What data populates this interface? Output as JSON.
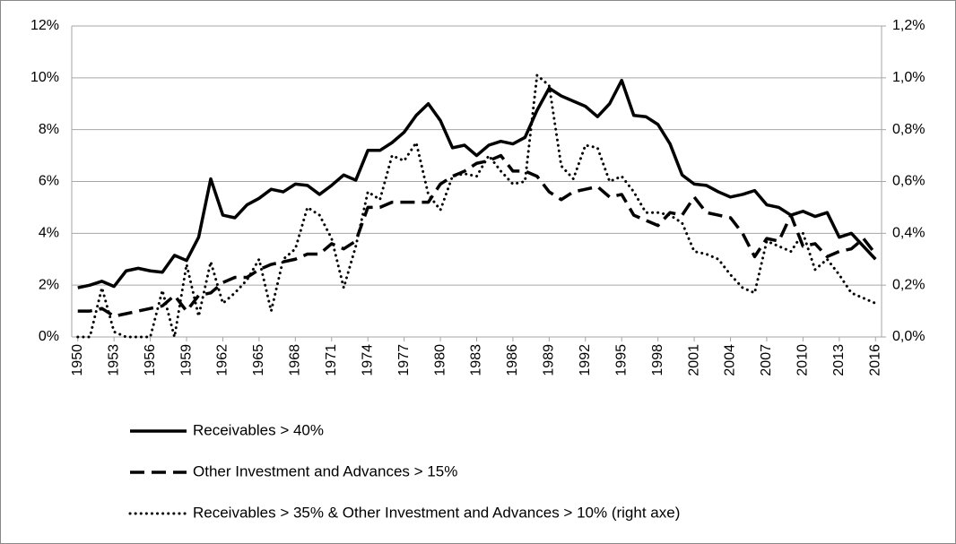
{
  "chart_data": {
    "type": "line",
    "x": [
      1950,
      1951,
      1952,
      1953,
      1954,
      1955,
      1956,
      1957,
      1958,
      1959,
      1960,
      1961,
      1962,
      1963,
      1964,
      1965,
      1966,
      1967,
      1968,
      1969,
      1970,
      1971,
      1972,
      1973,
      1974,
      1975,
      1976,
      1977,
      1978,
      1979,
      1980,
      1981,
      1982,
      1983,
      1984,
      1985,
      1986,
      1987,
      1988,
      1989,
      1990,
      1991,
      1992,
      1993,
      1994,
      1995,
      1996,
      1997,
      1998,
      1999,
      2000,
      2001,
      2002,
      2003,
      2004,
      2005,
      2006,
      2007,
      2008,
      2009,
      2010,
      2011,
      2012,
      2013,
      2014,
      2015,
      2016
    ],
    "xlim": [
      1949.5,
      2016.5
    ],
    "xticks": [
      1950,
      1953,
      1956,
      1959,
      1962,
      1965,
      1968,
      1971,
      1974,
      1977,
      1980,
      1983,
      1986,
      1989,
      1992,
      1995,
      1998,
      2001,
      2004,
      2007,
      2010,
      2013,
      2016
    ],
    "ylim": [
      0,
      12
    ],
    "yticks": [
      {
        "value": 0,
        "label": "0%"
      },
      {
        "value": 2,
        "label": "2%"
      },
      {
        "value": 4,
        "label": "4%"
      },
      {
        "value": 6,
        "label": "6%"
      },
      {
        "value": 8,
        "label": "8%"
      },
      {
        "value": 10,
        "label": "10%"
      },
      {
        "value": 12,
        "label": "12%"
      }
    ],
    "y2lim": [
      0,
      1.2
    ],
    "y2ticks": [
      {
        "value": 0,
        "label": "0,0%"
      },
      {
        "value": 0.2,
        "label": "0,2%"
      },
      {
        "value": 0.4,
        "label": "0,4%"
      },
      {
        "value": 0.6,
        "label": "0,6%"
      },
      {
        "value": 0.8,
        "label": "0,8%"
      },
      {
        "value": 1.0,
        "label": "1,0%"
      },
      {
        "value": 1.2,
        "label": "1,2%"
      }
    ],
    "grid": true,
    "legend": "bottom",
    "series": [
      {
        "name": "Receivables > 40%",
        "color": "#000000",
        "dash": "solid",
        "values": [
          1.9,
          2.0,
          2.15,
          1.95,
          2.55,
          2.65,
          2.55,
          2.5,
          3.15,
          2.95,
          3.85,
          6.1,
          4.7,
          4.6,
          5.1,
          5.35,
          5.7,
          5.6,
          5.9,
          5.85,
          5.5,
          5.85,
          6.25,
          6.05,
          7.2,
          7.2,
          7.5,
          7.9,
          8.55,
          9.0,
          8.35,
          7.3,
          7.4,
          7.0,
          7.4,
          7.55,
          7.45,
          7.7,
          8.75,
          9.6,
          9.3,
          9.1,
          8.9,
          8.5,
          9.0,
          9.9,
          8.55,
          8.5,
          8.2,
          7.45,
          6.25,
          5.9,
          5.85,
          5.6,
          5.4,
          5.5,
          5.65,
          5.1,
          5.0,
          4.7,
          4.85,
          4.65,
          4.8,
          3.85,
          4.0,
          3.5,
          3.0
        ]
      },
      {
        "name": "Other Investment and Advances > 15%",
        "color": "#000000",
        "dash": "dashed",
        "values": [
          1.0,
          1.0,
          1.1,
          0.8,
          0.9,
          1.0,
          1.1,
          1.2,
          1.6,
          1.0,
          1.6,
          1.7,
          2.1,
          2.3,
          2.3,
          2.6,
          2.8,
          2.9,
          3.0,
          3.2,
          3.2,
          3.6,
          3.4,
          3.7,
          5.0,
          5.0,
          5.2,
          5.2,
          5.2,
          5.2,
          5.9,
          6.2,
          6.4,
          6.7,
          6.8,
          7.0,
          6.4,
          6.4,
          6.2,
          5.6,
          5.3,
          5.6,
          5.7,
          5.8,
          5.4,
          5.5,
          4.7,
          4.5,
          4.3,
          4.8,
          4.7,
          5.4,
          4.8,
          4.7,
          4.6,
          4.0,
          3.1,
          3.8,
          3.7,
          4.7,
          3.5,
          3.6,
          3.1,
          3.3,
          3.4,
          3.8,
          3.2
        ]
      },
      {
        "name": "Receivables > 35% & Other Investment and Advances > 10% (right axe)",
        "color": "#000000",
        "dash": "dotted",
        "axis": "y2",
        "values": [
          0,
          0,
          0.19,
          0.02,
          0,
          0,
          0,
          0.18,
          0,
          0.28,
          0.08,
          0.29,
          0.13,
          0.17,
          0.22,
          0.3,
          0.1,
          0.3,
          0.34,
          0.5,
          0.47,
          0.38,
          0.19,
          0.35,
          0.56,
          0.53,
          0.7,
          0.68,
          0.75,
          0.55,
          0.49,
          0.62,
          0.63,
          0.62,
          0.7,
          0.64,
          0.59,
          0.6,
          1.01,
          0.97,
          0.66,
          0.61,
          0.74,
          0.73,
          0.6,
          0.62,
          0.56,
          0.48,
          0.48,
          0.47,
          0.44,
          0.33,
          0.32,
          0.3,
          0.24,
          0.19,
          0.17,
          0.37,
          0.35,
          0.33,
          0.4,
          0.26,
          0.3,
          0.24,
          0.17,
          0.15,
          0.13
        ]
      }
    ]
  }
}
